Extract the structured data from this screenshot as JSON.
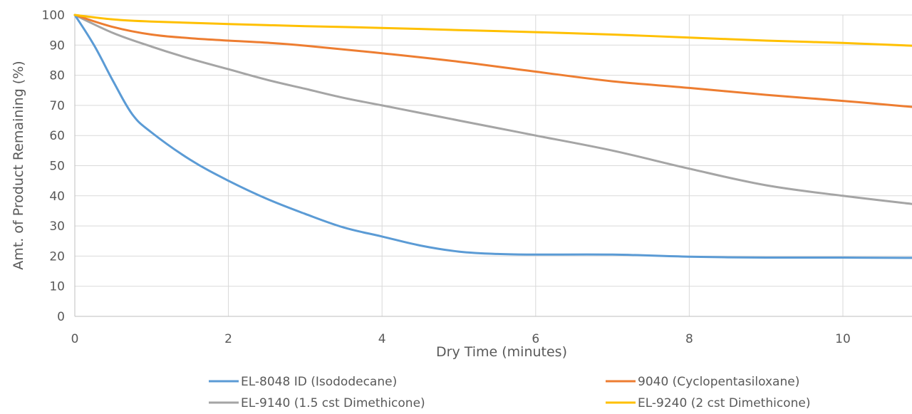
{
  "chart_data": {
    "type": "line",
    "title": "",
    "xlabel": "Dry Time (minutes)",
    "ylabel": "Amt. of Product Remaining (%)",
    "xlim": [
      0,
      10.9
    ],
    "ylim": [
      0,
      100
    ],
    "xticks": [
      0,
      2,
      4,
      6,
      8,
      10
    ],
    "yticks": [
      0,
      10,
      20,
      30,
      40,
      50,
      60,
      70,
      80,
      90,
      100
    ],
    "grid": true,
    "legend_position": "bottom",
    "series": [
      {
        "name": "EL-8048 ID (Isododecane)",
        "color": "#5b9bd5",
        "x": [
          0,
          0.25,
          0.5,
          0.75,
          1,
          1.5,
          2,
          2.5,
          3,
          3.5,
          4,
          4.5,
          5,
          5.5,
          6,
          7,
          8,
          9,
          10,
          10.9
        ],
        "y": [
          100,
          90,
          78,
          67,
          61,
          52,
          45,
          39,
          34,
          29.5,
          26.5,
          23.5,
          21.5,
          20.7,
          20.5,
          20.5,
          19.8,
          19.5,
          19.5,
          19.4
        ]
      },
      {
        "name": "9040 (Cyclopentasiloxane)",
        "color": "#ed7d31",
        "x": [
          0,
          0.5,
          1,
          1.5,
          2,
          2.5,
          3,
          4,
          5,
          6,
          7,
          8,
          9,
          10,
          10.9
        ],
        "y": [
          100,
          96,
          93.5,
          92.3,
          91.5,
          90.8,
          89.8,
          87.3,
          84.5,
          81.2,
          78,
          75.8,
          73.5,
          71.5,
          69.5
        ]
      },
      {
        "name": "EL-9140 (1.5 cst Dimethicone)",
        "color": "#a5a5a5",
        "x": [
          0,
          0.5,
          1,
          1.5,
          2,
          2.5,
          3,
          3.5,
          4,
          4.5,
          5,
          5.5,
          6,
          7,
          8,
          9,
          10,
          10.9
        ],
        "y": [
          100,
          94,
          89.5,
          85.5,
          82,
          78.5,
          75.5,
          72.5,
          70,
          67.5,
          65,
          62.5,
          60,
          55,
          49,
          43.5,
          40,
          37.3
        ]
      },
      {
        "name": "EL-9240 (2 cst Dimethicone)",
        "color": "#ffc000",
        "x": [
          0,
          0.5,
          1,
          2,
          3,
          4,
          5,
          6,
          7,
          8,
          9,
          10,
          10.9
        ],
        "y": [
          100,
          98.5,
          97.8,
          97,
          96.3,
          95.7,
          95,
          94.3,
          93.5,
          92.5,
          91.5,
          90.7,
          89.8
        ]
      }
    ]
  }
}
